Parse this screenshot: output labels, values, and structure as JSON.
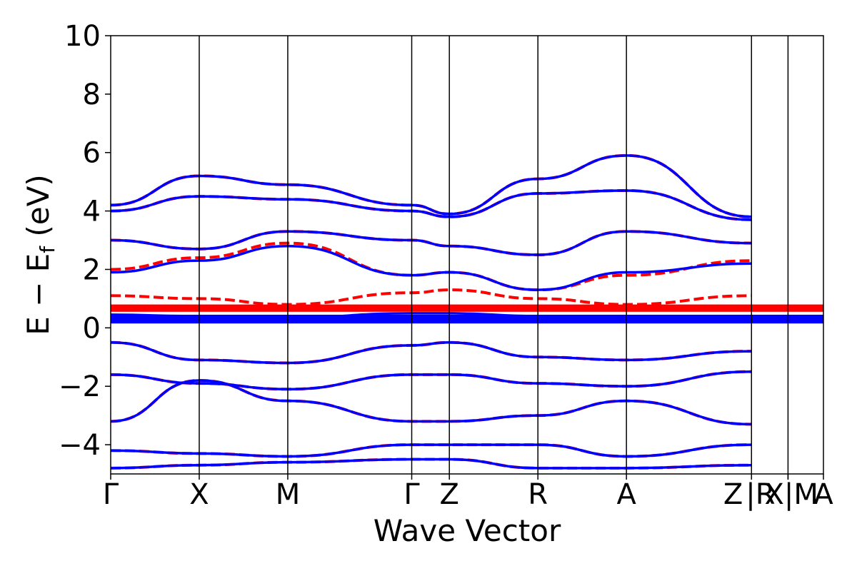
{
  "chart_data": {
    "type": "line",
    "xlabel": "Wave Vector",
    "ylabel_main": "E − E",
    "ylabel_sub": "f",
    "ylabel_unit": " (eV)",
    "ylim": [
      -5,
      10
    ],
    "yticks": [
      10,
      8,
      6,
      4,
      2,
      0,
      -2,
      -4
    ],
    "ytick_labels": [
      "10",
      "8",
      "6",
      "4",
      "2",
      "0",
      "−2",
      "−4"
    ],
    "x_range": [
      0,
      6.44
    ],
    "kpoints": [
      {
        "label": "Γ",
        "x": 0.0
      },
      {
        "label": "X",
        "x": 0.8
      },
      {
        "label": "M",
        "x": 1.6
      },
      {
        "label": "Γ",
        "x": 2.72
      },
      {
        "label": "Z",
        "x": 3.06
      },
      {
        "label": "R",
        "x": 3.86
      },
      {
        "label": "A",
        "x": 4.66
      },
      {
        "label": "Z",
        "x": 5.79
      },
      {
        "label": "|R",
        "x": 5.79
      },
      {
        "label": "X|",
        "x": 6.12
      },
      {
        "label": "M",
        "x": 6.12
      },
      {
        "label": "A",
        "x": 6.44
      }
    ],
    "grid": false,
    "colors": {
      "series_a": "#ff0000",
      "series_b": "#0000ff"
    },
    "series": [
      {
        "style": "dashed",
        "color": "#ff0000",
        "bands": [
          {
            "x": [
              0,
              0.8,
              1.6,
              2.72,
              3.06,
              3.86,
              4.66,
              5.79
            ],
            "y": [
              -4.8,
              -4.7,
              -4.6,
              -4.5,
              -4.5,
              -4.8,
              -4.8,
              -4.7
            ]
          },
          {
            "x": [
              0,
              0.8,
              1.6,
              2.72,
              3.06,
              3.86,
              4.66,
              5.79
            ],
            "y": [
              -4.2,
              -4.3,
              -4.4,
              -4.0,
              -4.0,
              -4.0,
              -4.4,
              -4.0
            ]
          },
          {
            "x": [
              0,
              0.8,
              1.6,
              2.72,
              3.06,
              3.86,
              4.66,
              5.79
            ],
            "y": [
              -3.2,
              -1.8,
              -2.5,
              -3.2,
              -3.2,
              -3.0,
              -2.5,
              -3.3
            ]
          },
          {
            "x": [
              0,
              0.8,
              1.6,
              2.72,
              3.06,
              3.86,
              4.66,
              5.79
            ],
            "y": [
              -1.6,
              -1.9,
              -2.1,
              -1.6,
              -1.6,
              -1.9,
              -2.0,
              -1.5
            ]
          },
          {
            "x": [
              0,
              0.8,
              1.6,
              2.72,
              3.06,
              3.86,
              4.66,
              5.79
            ],
            "y": [
              -0.5,
              -1.1,
              -1.2,
              -0.6,
              -0.5,
              -1.0,
              -1.1,
              -0.8
            ]
          },
          {
            "x": [
              0,
              0.8,
              1.6,
              2.72,
              3.06,
              3.86,
              4.66,
              5.79
            ],
            "y": [
              0.7,
              0.7,
              0.7,
              0.7,
              0.7,
              0.7,
              0.7,
              0.7
            ]
          },
          {
            "x": [
              0,
              0.8,
              1.6,
              2.72,
              3.06,
              3.86,
              4.66,
              5.79
            ],
            "y": [
              1.1,
              1.0,
              0.8,
              1.2,
              1.3,
              1.0,
              0.8,
              1.1
            ]
          },
          {
            "x": [
              0,
              0.8,
              1.6,
              2.72,
              3.06,
              3.86,
              4.66,
              5.79
            ],
            "y": [
              2.0,
              2.4,
              2.9,
              1.8,
              1.9,
              1.3,
              1.8,
              2.3
            ]
          },
          {
            "x": [
              0,
              0.8,
              1.6,
              2.72,
              3.06,
              3.86,
              4.66,
              5.79
            ],
            "y": [
              3.0,
              2.7,
              3.3,
              3.0,
              2.8,
              2.5,
              3.3,
              2.9
            ]
          },
          {
            "x": [
              0,
              0.8,
              1.6,
              2.72,
              3.06,
              3.86,
              4.66,
              5.79
            ],
            "y": [
              4.0,
              4.5,
              4.4,
              4.0,
              3.8,
              4.6,
              4.7,
              3.7
            ]
          },
          {
            "x": [
              0,
              0.8,
              1.6,
              2.72,
              3.06,
              3.86,
              4.66,
              5.79
            ],
            "y": [
              4.2,
              5.2,
              4.9,
              4.2,
              3.9,
              5.1,
              5.9,
              3.8
            ]
          }
        ]
      },
      {
        "style": "solid",
        "color": "#0000ff",
        "bands": [
          {
            "x": [
              0,
              0.8,
              1.6,
              2.72,
              3.06,
              3.86,
              4.66,
              5.79
            ],
            "y": [
              -4.8,
              -4.7,
              -4.6,
              -4.5,
              -4.5,
              -4.8,
              -4.8,
              -4.7
            ]
          },
          {
            "x": [
              0,
              0.8,
              1.6,
              2.72,
              3.06,
              3.86,
              4.66,
              5.79
            ],
            "y": [
              -4.2,
              -4.3,
              -4.4,
              -4.0,
              -4.0,
              -4.0,
              -4.4,
              -4.0
            ]
          },
          {
            "x": [
              0,
              0.8,
              1.6,
              2.72,
              3.06,
              3.86,
              4.66,
              5.79
            ],
            "y": [
              -3.2,
              -1.8,
              -2.5,
              -3.2,
              -3.2,
              -3.0,
              -2.5,
              -3.3
            ]
          },
          {
            "x": [
              0,
              0.8,
              1.6,
              2.72,
              3.06,
              3.86,
              4.66,
              5.79
            ],
            "y": [
              -1.6,
              -1.9,
              -2.1,
              -1.6,
              -1.6,
              -1.9,
              -2.0,
              -1.5
            ]
          },
          {
            "x": [
              0,
              0.8,
              1.6,
              2.72,
              3.06,
              3.86,
              4.66,
              5.79
            ],
            "y": [
              -0.5,
              -1.1,
              -1.2,
              -0.6,
              -0.5,
              -1.0,
              -1.1,
              -0.8
            ]
          },
          {
            "x": [
              0,
              0.8,
              1.6,
              2.72,
              3.06,
              3.86,
              4.66,
              5.79
            ],
            "y": [
              0.2,
              0.25,
              0.2,
              0.3,
              0.3,
              0.25,
              0.2,
              0.2
            ]
          },
          {
            "x": [
              0,
              0.8,
              1.6,
              2.72,
              3.06,
              3.86,
              4.66,
              5.79
            ],
            "y": [
              0.45,
              0.4,
              0.35,
              0.5,
              0.5,
              0.4,
              0.35,
              0.4
            ]
          },
          {
            "x": [
              0,
              0.8,
              1.6,
              2.72,
              3.06,
              3.86,
              4.66,
              5.79
            ],
            "y": [
              1.9,
              2.3,
              2.8,
              1.8,
              1.9,
              1.3,
              1.9,
              2.2
            ]
          },
          {
            "x": [
              0,
              0.8,
              1.6,
              2.72,
              3.06,
              3.86,
              4.66,
              5.79
            ],
            "y": [
              3.0,
              2.7,
              3.3,
              3.0,
              2.8,
              2.5,
              3.3,
              2.9
            ]
          },
          {
            "x": [
              0,
              0.8,
              1.6,
              2.72,
              3.06,
              3.86,
              4.66,
              5.79
            ],
            "y": [
              4.0,
              4.5,
              4.4,
              4.0,
              3.8,
              4.6,
              4.7,
              3.7
            ]
          },
          {
            "x": [
              0,
              0.8,
              1.6,
              2.72,
              3.06,
              3.86,
              4.66,
              5.79
            ],
            "y": [
              4.2,
              5.2,
              4.9,
              4.2,
              3.9,
              5.1,
              5.9,
              3.8
            ]
          }
        ]
      }
    ]
  }
}
